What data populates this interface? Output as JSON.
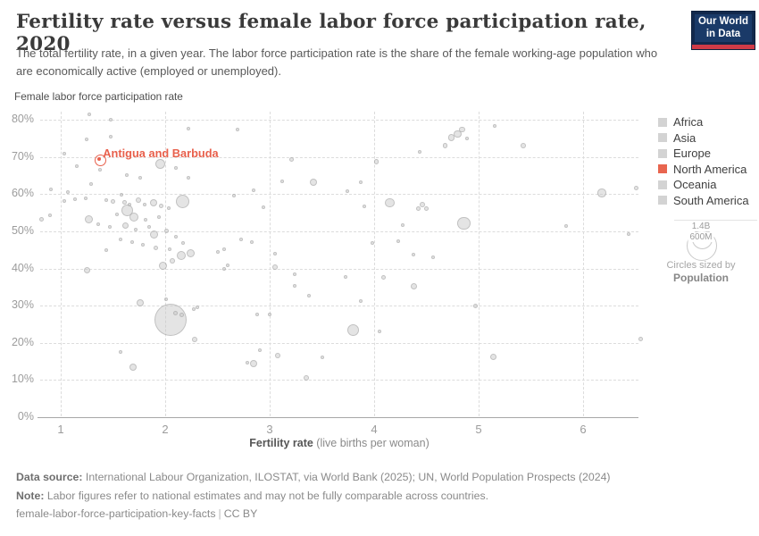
{
  "header": {
    "title": "Fertility rate versus female labor force participation rate, 2020",
    "subtitle": "The total fertility rate, in a given year. The labor force participation rate is the share of the female working-age population who are economically active (employed or unemployed).",
    "logo": {
      "line1": "Our World",
      "line2": "in Data"
    }
  },
  "chart_data": {
    "type": "scatter",
    "title": "Fertility rate versus female labor force participation rate, 2020",
    "xlabel": "Fertility rate",
    "xlabel_units": " (live births per woman)",
    "ylabel": "Female labor force participation rate",
    "x_ticks": [
      "1",
      "2",
      "3",
      "4",
      "5",
      "6"
    ],
    "x_tick_values": [
      1,
      2,
      3,
      4,
      5,
      6
    ],
    "y_ticks": [
      "0%",
      "10%",
      "20%",
      "30%",
      "40%",
      "50%",
      "60%",
      "70%",
      "80%"
    ],
    "y_tick_values": [
      0,
      10,
      20,
      30,
      40,
      50,
      60,
      70,
      80
    ],
    "xlim": [
      0.8,
      6.55
    ],
    "ylim": [
      0,
      82
    ],
    "grid": "dashed",
    "legend_position": "right",
    "points_format": "[fertility_rate, female_lfpr_percent, bubble_radius_px_population_scaled]",
    "points": [
      [
        1.27,
        81.4,
        2
      ],
      [
        1.48,
        80.1,
        2
      ],
      [
        2.22,
        77.6,
        2
      ],
      [
        1.25,
        74.7,
        2
      ],
      [
        1.48,
        75.4,
        2
      ],
      [
        1.03,
        70.9,
        2
      ],
      [
        1.15,
        67.5,
        2
      ],
      [
        1.38,
        66.5,
        2
      ],
      [
        1.63,
        65.1,
        2
      ],
      [
        1.76,
        64.4,
        2
      ],
      [
        1.95,
        68.0,
        5.5
      ],
      [
        2.1,
        67.0,
        2
      ],
      [
        2.22,
        64.4,
        2
      ],
      [
        2.69,
        77.3,
        2
      ],
      [
        3.21,
        69.2,
        2.5
      ],
      [
        0.91,
        61.3,
        2
      ],
      [
        1.07,
        60.5,
        2
      ],
      [
        1.03,
        58.1,
        2
      ],
      [
        1.14,
        58.6,
        2
      ],
      [
        1.24,
        58.9,
        2
      ],
      [
        1.29,
        62.7,
        2
      ],
      [
        1.44,
        58.4,
        2
      ],
      [
        1.5,
        57.9,
        2.5
      ],
      [
        1.58,
        59.8,
        2
      ],
      [
        1.61,
        57.7,
        2.5
      ],
      [
        1.66,
        57.2,
        2
      ],
      [
        1.74,
        58.4,
        3
      ],
      [
        1.8,
        57.2,
        2
      ],
      [
        1.89,
        57.7,
        4
      ],
      [
        1.96,
        56.7,
        2.5
      ],
      [
        2.03,
        56.2,
        2
      ],
      [
        2.17,
        57.9,
        7.5
      ],
      [
        1.64,
        55.7,
        6.5
      ],
      [
        1.54,
        54.5,
        2
      ],
      [
        1.7,
        53.8,
        5
      ],
      [
        1.81,
        53.1,
        2
      ],
      [
        1.27,
        53.1,
        4.5
      ],
      [
        1.36,
        51.9,
        2
      ],
      [
        1.47,
        51.2,
        2
      ],
      [
        1.62,
        51.6,
        3.5
      ],
      [
        1.72,
        50.4,
        2
      ],
      [
        1.85,
        51.2,
        2
      ],
      [
        0.82,
        53.1,
        2.5
      ],
      [
        0.9,
        54.3,
        2
      ],
      [
        1.94,
        53.8,
        2
      ],
      [
        2.01,
        50.0,
        2.5
      ],
      [
        1.89,
        49.2,
        4.5
      ],
      [
        2.1,
        48.5,
        2
      ],
      [
        1.57,
        47.8,
        2
      ],
      [
        1.68,
        47.1,
        2
      ],
      [
        1.79,
        46.4,
        2
      ],
      [
        1.91,
        45.6,
        2.5
      ],
      [
        2.04,
        45.2,
        2
      ],
      [
        2.17,
        46.8,
        2
      ],
      [
        1.44,
        44.9,
        2
      ],
      [
        1.25,
        39.6,
        3.5
      ],
      [
        1.98,
        40.8,
        4.5
      ],
      [
        2.07,
        42.0,
        3
      ],
      [
        2.15,
        43.5,
        5
      ],
      [
        2.24,
        44.0,
        4.5
      ],
      [
        1.76,
        30.7,
        4
      ],
      [
        2.01,
        31.7,
        2
      ],
      [
        2.05,
        26.2,
        18
      ],
      [
        2.1,
        28.1,
        2.5
      ],
      [
        2.16,
        27.6,
        2.5
      ],
      [
        2.27,
        29.1,
        2
      ],
      [
        2.31,
        29.5,
        2
      ],
      [
        2.28,
        20.9,
        3
      ],
      [
        1.57,
        17.5,
        2
      ],
      [
        1.69,
        13.5,
        4
      ],
      [
        2.85,
        14.4,
        4
      ],
      [
        2.79,
        14.7,
        2
      ],
      [
        3.08,
        16.6,
        3
      ],
      [
        3.5,
        16.1,
        2
      ],
      [
        3.35,
        10.6,
        3
      ],
      [
        2.91,
        18.0,
        2
      ],
      [
        3.0,
        27.6,
        2
      ],
      [
        2.88,
        27.6,
        2
      ],
      [
        3.8,
        23.5,
        6.5
      ],
      [
        4.05,
        23.1,
        2
      ],
      [
        3.87,
        31.2,
        2
      ],
      [
        3.38,
        32.7,
        2
      ],
      [
        3.24,
        35.3,
        2
      ],
      [
        3.24,
        38.4,
        2
      ],
      [
        3.73,
        37.7,
        2
      ],
      [
        4.09,
        37.5,
        2.5
      ],
      [
        4.38,
        35.1,
        3.5
      ],
      [
        4.97,
        29.8,
        2.5
      ],
      [
        5.14,
        16.3,
        3.5
      ],
      [
        6.55,
        21.1,
        2.5
      ],
      [
        3.05,
        44.0,
        2
      ],
      [
        3.05,
        40.4,
        3
      ],
      [
        2.6,
        40.8,
        2
      ],
      [
        2.56,
        39.9,
        2
      ],
      [
        2.5,
        44.4,
        2
      ],
      [
        2.56,
        45.2,
        2
      ],
      [
        2.73,
        47.8,
        2
      ],
      [
        2.83,
        47.1,
        2
      ],
      [
        2.66,
        59.6,
        2
      ],
      [
        2.85,
        61.0,
        2
      ],
      [
        2.94,
        56.5,
        2
      ],
      [
        3.12,
        63.4,
        2
      ],
      [
        3.42,
        63.2,
        4
      ],
      [
        3.87,
        63.2,
        2
      ],
      [
        3.74,
        60.8,
        2
      ],
      [
        3.91,
        56.7,
        2
      ],
      [
        4.15,
        57.7,
        5.3
      ],
      [
        4.42,
        56.2,
        2.5
      ],
      [
        4.46,
        57.2,
        3
      ],
      [
        4.5,
        56.2,
        2.5
      ],
      [
        4.27,
        51.7,
        2
      ],
      [
        3.98,
        46.8,
        2
      ],
      [
        4.38,
        43.7,
        2
      ],
      [
        4.56,
        43.0,
        2
      ],
      [
        4.23,
        47.3,
        2
      ],
      [
        4.02,
        68.7,
        2.7
      ],
      [
        4.44,
        71.3,
        2
      ],
      [
        4.68,
        73.0,
        2.7
      ],
      [
        4.74,
        75.2,
        3.7
      ],
      [
        4.8,
        76.2,
        4.3
      ],
      [
        4.84,
        77.4,
        3.3
      ],
      [
        4.89,
        75.0,
        2.3
      ],
      [
        5.15,
        78.3,
        2
      ],
      [
        5.43,
        73.0,
        3
      ],
      [
        5.84,
        51.4,
        2
      ],
      [
        6.18,
        60.3,
        4.7
      ],
      [
        6.51,
        61.7,
        2.5
      ],
      [
        6.44,
        49.2,
        2
      ],
      [
        4.86,
        52.1,
        7.3
      ]
    ],
    "highlight": {
      "label": "Antigua and Barbuda",
      "x": 1.37,
      "y": 69.4,
      "color": "#e8604c"
    },
    "legend": [
      {
        "label": "Africa",
        "color": "#d3d3d3"
      },
      {
        "label": "Asia",
        "color": "#d3d3d3"
      },
      {
        "label": "Europe",
        "color": "#d3d3d3"
      },
      {
        "label": "North America",
        "color": "#e8654f"
      },
      {
        "label": "Oceania",
        "color": "#d3d3d3"
      },
      {
        "label": "South America",
        "color": "#d3d3d3"
      }
    ],
    "size_legend": {
      "outer_label": "1.4B",
      "inner_label": "600M",
      "caption": "Circles sized by",
      "caption_bold": "Population"
    }
  },
  "footer": {
    "source_label": "Data source:",
    "source_text": " International Labour Organization, ILOSTAT, via World Bank (2025); UN, World Population Prospects (2024)",
    "note_label": "Note:",
    "note_text": " Labor figures refer to national estimates and may not be fully comparable across countries.",
    "slug": "female-labor-force-participation-key-facts",
    "license": "CC BY"
  },
  "colors": {
    "highlight": "#e8604c",
    "bubble_fill": "rgba(196,196,196,0.45)",
    "bubble_stroke": "rgba(150,150,150,0.45)",
    "logo_navy": "#12294d",
    "logo_stripe": "#cf3b47",
    "grid": "#dcdcdc",
    "tick_text": "#9c9c9c"
  }
}
